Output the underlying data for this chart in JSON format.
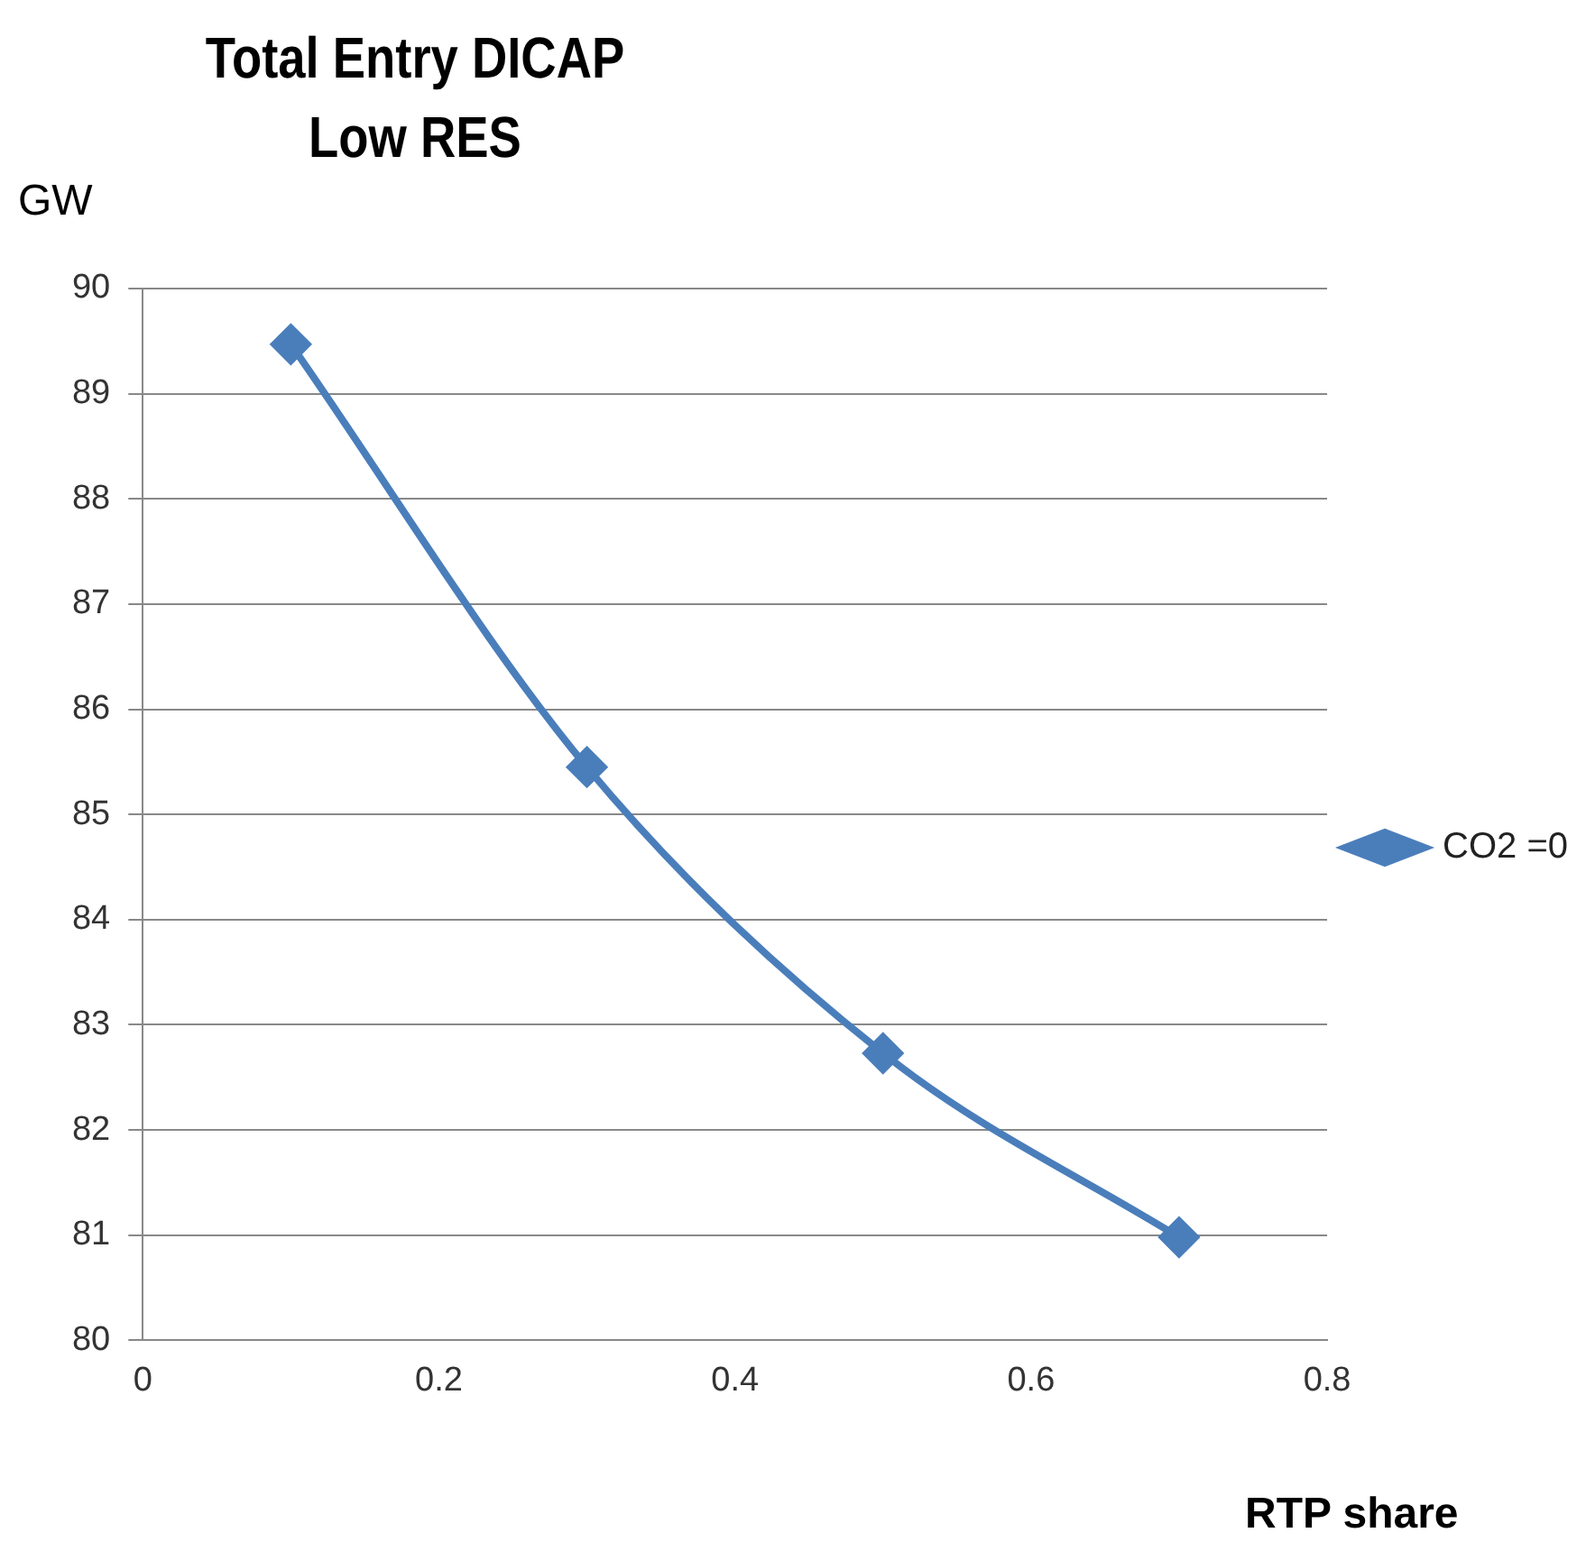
{
  "chart_data": {
    "type": "line",
    "title": "Total Entry DICAP\nLow RES",
    "xlabel": "RTP share",
    "ylabel": "GW",
    "x": [
      0.1,
      0.3,
      0.5,
      0.7
    ],
    "series": [
      {
        "name": "CO2 =0",
        "color": "#4a7ebb",
        "values": [
          89.47,
          85.45,
          82.73,
          80.98
        ]
      }
    ],
    "xlim": [
      0,
      0.8
    ],
    "xticks": [
      0,
      0.2,
      0.4,
      0.6,
      0.8
    ],
    "ylim": [
      80,
      90
    ],
    "yticks": [
      80,
      81,
      82,
      83,
      84,
      85,
      86,
      87,
      88,
      89,
      90
    ],
    "grid": "y",
    "legend": "right",
    "marker": "diamond",
    "line_style": "solid"
  }
}
